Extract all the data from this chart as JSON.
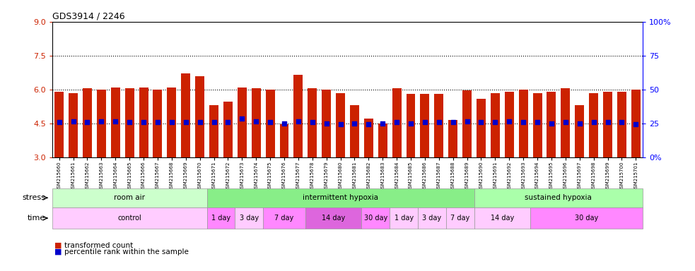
{
  "title": "GDS3914 / 2246",
  "bar_values": [
    5.9,
    5.85,
    6.05,
    6.0,
    6.1,
    6.05,
    6.1,
    6.0,
    6.1,
    6.7,
    6.6,
    5.3,
    5.45,
    6.1,
    6.05,
    6.0,
    4.45,
    6.65,
    6.05,
    6.0,
    5.85,
    5.3,
    4.7,
    4.5,
    6.05,
    5.8,
    5.8,
    5.8,
    4.65,
    5.95,
    5.6,
    5.85,
    5.9,
    6.0,
    5.85,
    5.9,
    6.05,
    5.3,
    5.85,
    5.9,
    5.9,
    6.0
  ],
  "percentile_values": [
    4.55,
    4.6,
    4.55,
    4.6,
    4.6,
    4.55,
    4.55,
    4.55,
    4.55,
    4.55,
    4.55,
    4.55,
    4.55,
    4.7,
    4.6,
    4.55,
    4.5,
    4.6,
    4.55,
    4.5,
    4.45,
    4.5,
    4.45,
    4.5,
    4.55,
    4.5,
    4.55,
    4.55,
    4.55,
    4.6,
    4.55,
    4.55,
    4.6,
    4.55,
    4.55,
    4.5,
    4.55,
    4.5,
    4.55,
    4.55,
    4.55,
    4.45
  ],
  "sample_ids": [
    "GSM215660",
    "GSM215661",
    "GSM215662",
    "GSM215663",
    "GSM215664",
    "GSM215665",
    "GSM215666",
    "GSM215667",
    "GSM215668",
    "GSM215669",
    "GSM215670",
    "GSM215671",
    "GSM215672",
    "GSM215673",
    "GSM215674",
    "GSM215675",
    "GSM215676",
    "GSM215677",
    "GSM215678",
    "GSM215679",
    "GSM215680",
    "GSM215681",
    "GSM215682",
    "GSM215683",
    "GSM215684",
    "GSM215685",
    "GSM215686",
    "GSM215687",
    "GSM215688",
    "GSM215689",
    "GSM215690",
    "GSM215691",
    "GSM215692",
    "GSM215693",
    "GSM215694",
    "GSM215695",
    "GSM215696",
    "GSM215697",
    "GSM215698",
    "GSM215699",
    "GSM215700",
    "GSM215701"
  ],
  "bar_color": "#cc2200",
  "dot_color": "#0000cc",
  "ylim_left": [
    3,
    9
  ],
  "ylim_right": [
    0,
    100
  ],
  "yticks_left": [
    3,
    4.5,
    6,
    7.5,
    9
  ],
  "yticks_right": [
    0,
    25,
    50,
    75,
    100
  ],
  "ytick_labels_right": [
    "0%",
    "25",
    "50",
    "75",
    "100%"
  ],
  "hlines": [
    4.5,
    6.0,
    7.5
  ],
  "stress_groups": [
    {
      "label": "room air",
      "start": 0,
      "end": 11,
      "color": "#ccffcc"
    },
    {
      "label": "intermittent hypoxia",
      "start": 11,
      "end": 30,
      "color": "#88ee88"
    },
    {
      "label": "sustained hypoxia",
      "start": 30,
      "end": 42,
      "color": "#aaffaa"
    }
  ],
  "time_groups": [
    {
      "label": "control",
      "start": 0,
      "end": 11,
      "color": "#ffccff"
    },
    {
      "label": "1 day",
      "start": 11,
      "end": 13,
      "color": "#ff88ff"
    },
    {
      "label": "3 day",
      "start": 13,
      "end": 15,
      "color": "#ffccff"
    },
    {
      "label": "7 day",
      "start": 15,
      "end": 18,
      "color": "#ff88ff"
    },
    {
      "label": "14 day",
      "start": 18,
      "end": 22,
      "color": "#dd66dd"
    },
    {
      "label": "30 day",
      "start": 22,
      "end": 24,
      "color": "#ff88ff"
    },
    {
      "label": "1 day",
      "start": 24,
      "end": 26,
      "color": "#ffccff"
    },
    {
      "label": "3 day",
      "start": 26,
      "end": 28,
      "color": "#ffccff"
    },
    {
      "label": "7 day",
      "start": 28,
      "end": 30,
      "color": "#ffccff"
    },
    {
      "label": "14 day",
      "start": 30,
      "end": 34,
      "color": "#ffccff"
    },
    {
      "label": "30 day",
      "start": 34,
      "end": 42,
      "color": "#ff88ff"
    }
  ],
  "stress_label": "stress",
  "time_label": "time",
  "legend_bar_label": "transformed count",
  "legend_dot_label": "percentile rank within the sample"
}
